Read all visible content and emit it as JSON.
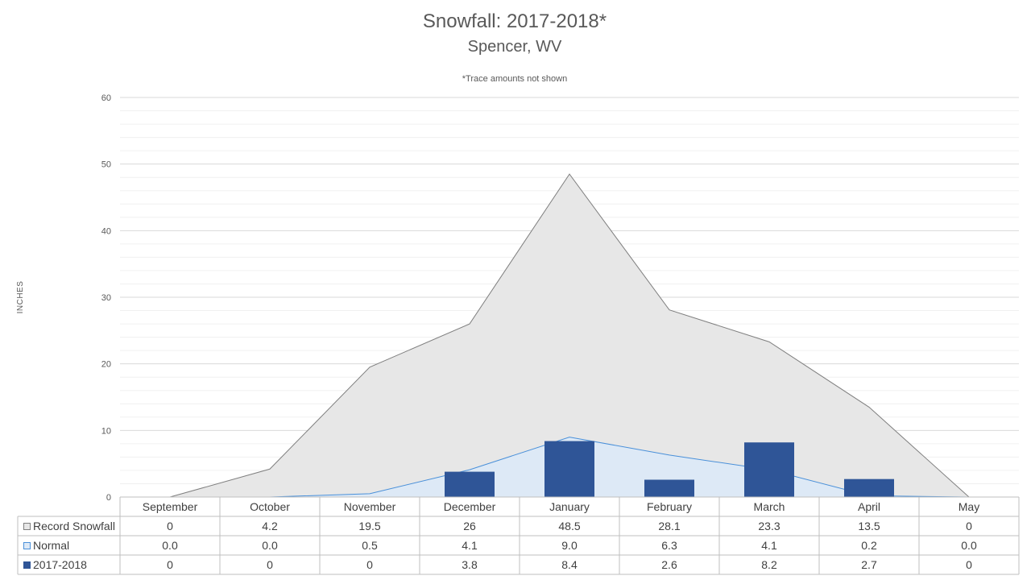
{
  "chart_data": {
    "type": "area",
    "title": "Snowfall: 2017-2018*",
    "subtitle": "Spencer, WV",
    "note": "*Trace amounts not shown",
    "ylabel": "INCHES",
    "ylim": [
      0,
      60
    ],
    "yticks": [
      0,
      10,
      20,
      30,
      40,
      50,
      60
    ],
    "grid": true,
    "legend": "data table (left)",
    "categories": [
      "September",
      "October",
      "November",
      "December",
      "January",
      "February",
      "March",
      "April",
      "May"
    ],
    "series": [
      {
        "name": "Record Snowfall",
        "type": "area",
        "color": "#e7e7e7",
        "stroke": "#7f7f7f",
        "values": [
          0,
          4.2,
          19.5,
          26,
          48.5,
          28.1,
          23.3,
          13.5,
          0
        ],
        "labels": [
          "0",
          "4.2",
          "19.5",
          "26",
          "48.5",
          "28.1",
          "23.3",
          "13.5",
          "0"
        ]
      },
      {
        "name": "Normal",
        "type": "area",
        "color": "#dde9f6",
        "stroke": "#4a90d9",
        "values": [
          0.0,
          0.0,
          0.5,
          4.1,
          9.0,
          6.3,
          4.1,
          0.2,
          0.0
        ],
        "labels": [
          "0.0",
          "0.0",
          "0.5",
          "4.1",
          "9.0",
          "6.3",
          "4.1",
          "0.2",
          "0.0"
        ]
      },
      {
        "name": "2017-2018",
        "type": "bar",
        "color": "#2f5597",
        "values": [
          0,
          0,
          0,
          3.8,
          8.4,
          2.6,
          8.2,
          2.7,
          0
        ],
        "labels": [
          "0",
          "0",
          "0",
          "3.8",
          "8.4",
          "2.6",
          "8.2",
          "2.7",
          "0"
        ]
      }
    ]
  }
}
